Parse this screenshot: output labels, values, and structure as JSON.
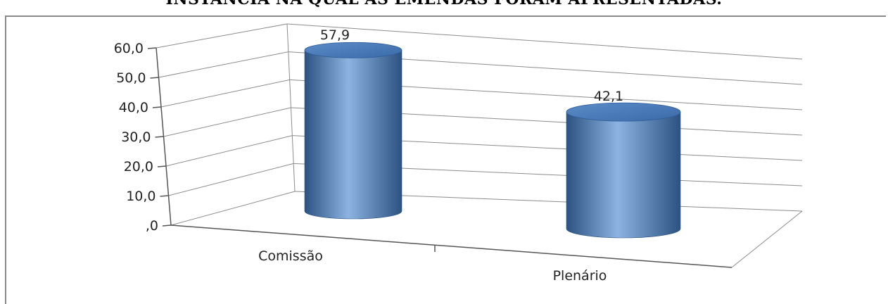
{
  "page": {
    "title": "INSTÂNCIA NA QUAL AS EMENDAS FORAM APRESENTADAS."
  },
  "chart_data": {
    "type": "bar",
    "style": "3d-cylinder",
    "categories": [
      "Comissão",
      "Plenário"
    ],
    "values": [
      57.9,
      42.1
    ],
    "value_labels": [
      "57,9",
      "42,1"
    ],
    "yticks": [
      ",0",
      "10,0",
      "20,0",
      "30,0",
      "40,0",
      "50,0",
      "60,0"
    ],
    "ylim": [
      0,
      60
    ],
    "grid": true,
    "legend": "none",
    "colors": {
      "bar": "#4f81bd",
      "bar_light": "#8db3e2",
      "bar_dark": "#2c5282",
      "grid": "#8c8c8c"
    }
  }
}
